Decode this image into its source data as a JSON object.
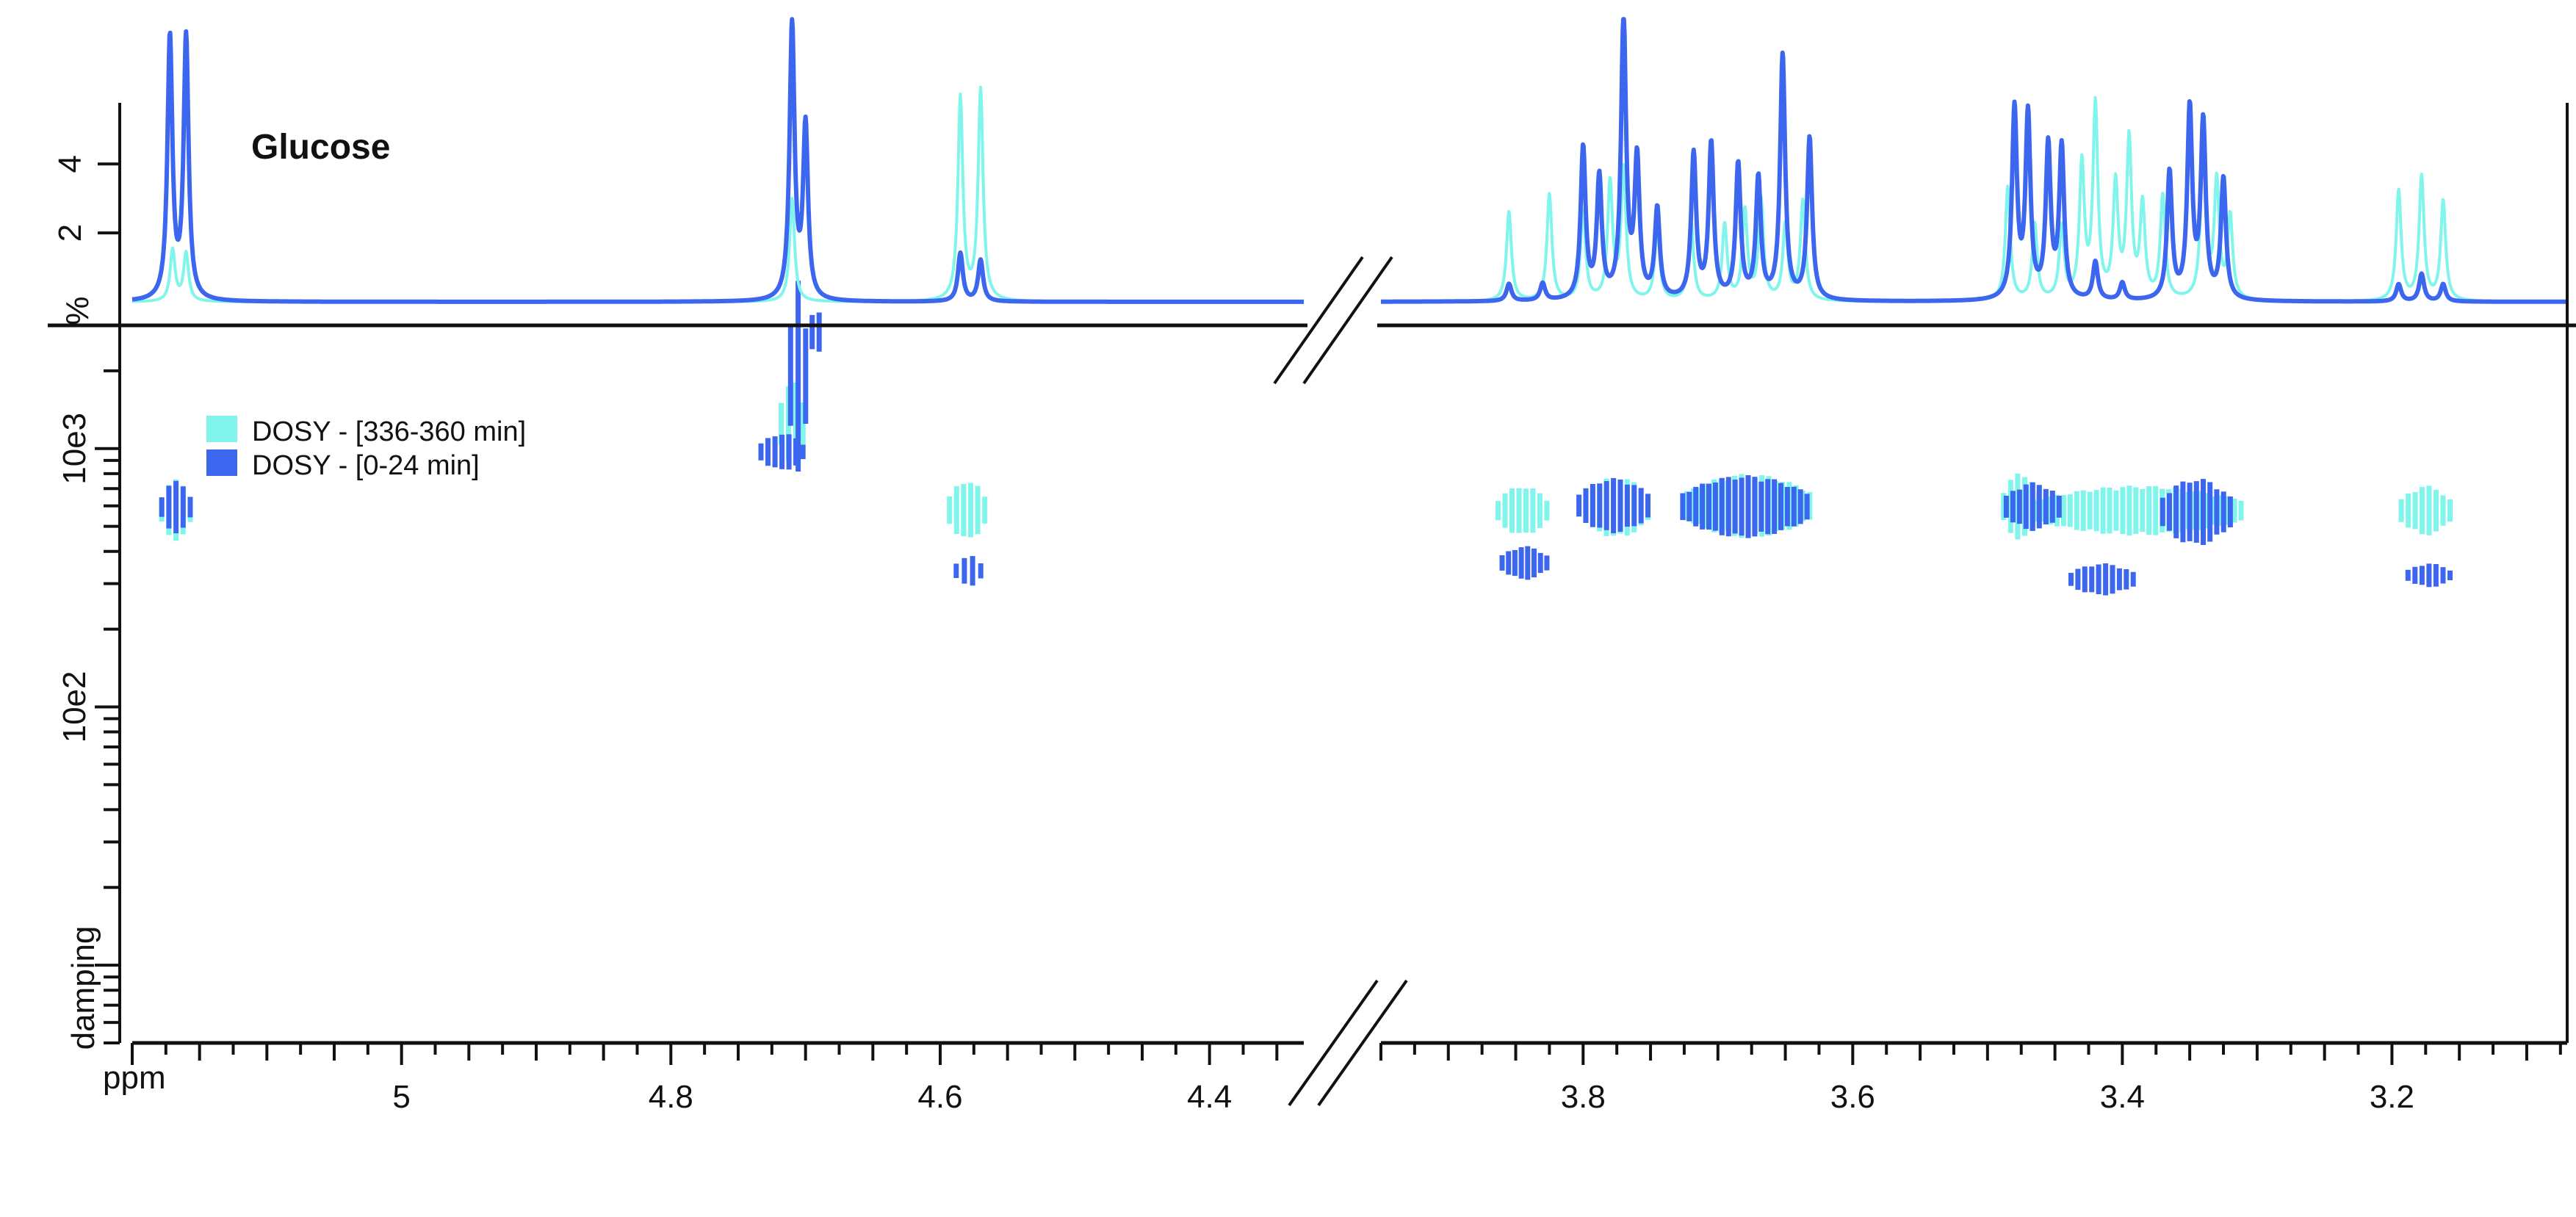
{
  "chart_data": {
    "type": "scatter",
    "title": "Glucose",
    "colors": {
      "late": "#7ff5ec",
      "early": "#3d66ee",
      "axis": "#111111"
    },
    "legend": [
      {
        "label": "DOSY - [336-360 min]",
        "color": "#7ff5ec"
      },
      {
        "label": "DOSY - [0-24 min]",
        "color": "#3d66ee"
      }
    ],
    "legend_position": "top-left",
    "x_axis": {
      "unit_label": "ppm",
      "reversed": true,
      "broken": true,
      "segments": [
        {
          "range": [
            5.2,
            4.33
          ]
        },
        {
          "range": [
            3.95,
            3.07
          ]
        }
      ],
      "tick_labels": [
        {
          "value": 5.0,
          "label": "5"
        },
        {
          "value": 4.8,
          "label": "4.8"
        },
        {
          "value": 4.6,
          "label": "4.6"
        },
        {
          "value": 4.4,
          "label": "4.4"
        },
        {
          "value": 3.8,
          "label": "3.8"
        },
        {
          "value": 3.6,
          "label": "3.6"
        },
        {
          "value": 3.4,
          "label": "3.4"
        },
        {
          "value": 3.2,
          "label": "3.2"
        }
      ]
    },
    "spectrum": {
      "ylabel": "%",
      "ylim": [
        0,
        6.2
      ],
      "tick_labels": [
        {
          "value": 2,
          "label": "2"
        },
        {
          "value": 4,
          "label": "4"
        }
      ],
      "series": [
        {
          "name": "DOSY - [336-360 min]",
          "peaks": [
            [
              5.17,
              1.5
            ],
            [
              5.16,
              1.4
            ],
            [
              4.71,
              3.0
            ],
            [
              4.585,
              5.9
            ],
            [
              4.57,
              6.1
            ],
            [
              3.855,
              2.6
            ],
            [
              3.825,
              3.1
            ],
            [
              3.8,
              2.6
            ],
            [
              3.78,
              3.4
            ],
            [
              3.77,
              3.8
            ],
            [
              3.745,
              2.1
            ],
            [
              3.72,
              2.4
            ],
            [
              3.695,
              2.2
            ],
            [
              3.68,
              2.6
            ],
            [
              3.668,
              2.9
            ],
            [
              3.65,
              2.2
            ],
            [
              3.637,
              2.9
            ],
            [
              3.485,
              3.3
            ],
            [
              3.465,
              2.2
            ],
            [
              3.445,
              2.1
            ],
            [
              3.43,
              3.9
            ],
            [
              3.42,
              5.6
            ],
            [
              3.405,
              3.3
            ],
            [
              3.395,
              4.6
            ],
            [
              3.385,
              2.7
            ],
            [
              3.37,
              3.0
            ],
            [
              3.34,
              4.6
            ],
            [
              3.33,
              3.4
            ],
            [
              3.32,
              2.4
            ],
            [
              3.195,
              3.2
            ],
            [
              3.178,
              3.6
            ],
            [
              3.162,
              2.9
            ]
          ]
        },
        {
          "name": "DOSY - [0-24 min]",
          "peaks": [
            [
              5.172,
              7.6
            ],
            [
              5.16,
              7.6
            ],
            [
              4.71,
              8.0
            ],
            [
              4.7,
              5.0
            ],
            [
              4.585,
              1.4
            ],
            [
              4.57,
              1.2
            ],
            [
              3.855,
              0.5
            ],
            [
              3.83,
              0.5
            ],
            [
              3.8,
              4.4
            ],
            [
              3.788,
              3.5
            ],
            [
              3.77,
              8.2
            ],
            [
              3.76,
              4.0
            ],
            [
              3.745,
              2.6
            ],
            [
              3.718,
              4.2
            ],
            [
              3.705,
              4.5
            ],
            [
              3.685,
              3.9
            ],
            [
              3.67,
              3.5
            ],
            [
              3.652,
              7.1
            ],
            [
              3.632,
              4.7
            ],
            [
              3.48,
              5.5
            ],
            [
              3.47,
              5.3
            ],
            [
              3.455,
              4.4
            ],
            [
              3.445,
              4.4
            ],
            [
              3.42,
              1.1
            ],
            [
              3.4,
              0.5
            ],
            [
              3.365,
              3.7
            ],
            [
              3.35,
              5.5
            ],
            [
              3.34,
              5.1
            ],
            [
              3.325,
              3.5
            ],
            [
              3.195,
              0.5
            ],
            [
              3.178,
              0.8
            ],
            [
              3.162,
              0.5
            ]
          ]
        }
      ]
    },
    "dosy": {
      "ylabel": "damping",
      "scale": "log",
      "ylim": [
        5,
        3000
      ],
      "tick_labels": [
        {
          "value": 100,
          "label": "10e2"
        },
        {
          "value": 1000,
          "label": "10e3"
        }
      ],
      "series": [
        {
          "name": "DOSY - [336-360 min]",
          "blobs": [
            {
              "x": [
                5.18,
                5.155
              ],
              "y": [
                440,
                760
              ]
            },
            {
              "x": [
                4.72,
                4.7
              ],
              "y": [
                820,
                1900
              ]
            },
            {
              "x": [
                4.595,
                4.565
              ],
              "y": [
                440,
                760
              ]
            },
            {
              "x": [
                3.865,
                3.825
              ],
              "y": [
                460,
                720
              ]
            },
            {
              "x": [
                3.8,
                3.75
              ],
              "y": [
                450,
                780
              ]
            },
            {
              "x": [
                3.725,
                3.63
              ],
              "y": [
                450,
                800
              ]
            },
            {
              "x": [
                3.49,
                3.46
              ],
              "y": [
                440,
                810
              ]
            },
            {
              "x": [
                3.465,
                3.31
              ],
              "y": [
                460,
                720
              ]
            },
            {
              "x": [
                3.195,
                3.155
              ],
              "y": [
                460,
                720
              ]
            }
          ]
        },
        {
          "name": "DOSY - [0-24 min]",
          "blobs": [
            {
              "x": [
                5.18,
                5.155
              ],
              "y": [
                470,
                750
              ]
            },
            {
              "x": [
                4.713,
                4.698
              ],
              "y": [
                700,
                5200
              ]
            },
            {
              "x": [
                4.735,
                4.7
              ],
              "y": [
                820,
                1150
              ]
            },
            {
              "x": [
                4.697,
                4.688
              ],
              "y": [
                1900,
                4200
              ]
            },
            {
              "x": [
                4.59,
                4.568
              ],
              "y": [
                290,
                390
              ]
            },
            {
              "x": [
                3.862,
                3.825
              ],
              "y": [
                310,
                420
              ]
            },
            {
              "x": [
                3.805,
                3.75
              ],
              "y": [
                470,
                770
              ]
            },
            {
              "x": [
                3.728,
                3.632
              ],
              "y": [
                450,
                790
              ]
            },
            {
              "x": [
                3.488,
                3.445
              ],
              "y": [
                480,
                740
              ]
            },
            {
              "x": [
                3.44,
                3.39
              ],
              "y": [
                270,
                360
              ]
            },
            {
              "x": [
                3.372,
                3.318
              ],
              "y": [
                420,
                770
              ]
            },
            {
              "x": [
                3.19,
                3.155
              ],
              "y": [
                290,
                360
              ]
            }
          ]
        }
      ]
    }
  }
}
